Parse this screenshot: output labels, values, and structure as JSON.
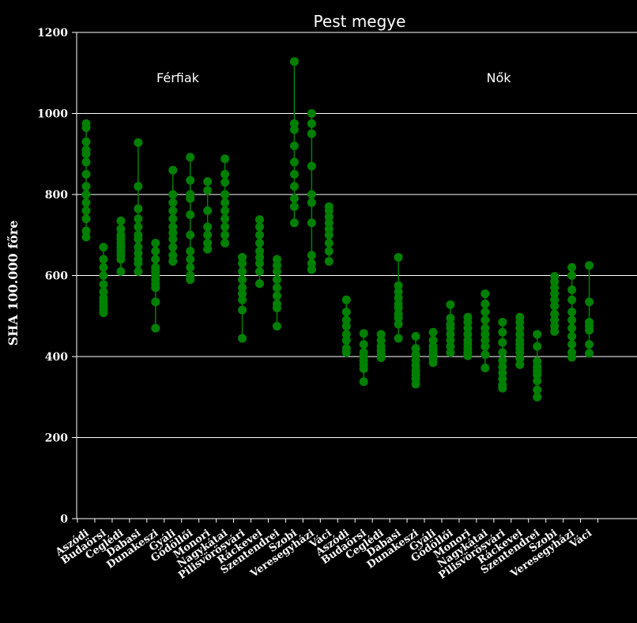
{
  "chart_data": {
    "type": "scatter",
    "title": "Pest megye",
    "ylabel": "SHA 100.000 főre",
    "xlabel": "",
    "ylim": [
      0,
      1200
    ],
    "yticks": [
      0,
      200,
      400,
      600,
      800,
      1000,
      1200
    ],
    "grid": true,
    "colors": {
      "background": "#000000",
      "marker": "#008000",
      "grid": "#ffffff",
      "text": "#ffffff"
    },
    "groups": [
      {
        "name": "Férfiak",
        "categories": [
          {
            "name": "Aszódi",
            "values": [
              695,
              710,
              740,
              760,
              780,
              800,
              820,
              850,
              880,
              900,
              910,
              930,
              965,
              975
            ]
          },
          {
            "name": "Budaörsi",
            "values": [
              508,
              515,
              525,
              535,
              545,
              560,
              578,
              600,
              620,
              640,
              670
            ]
          },
          {
            "name": "Ceglédi",
            "values": [
              610,
              640,
              650,
              660,
              670,
              680,
              690,
              700,
              715,
              735
            ]
          },
          {
            "name": "Dabasi",
            "values": [
              610,
              630,
              640,
              655,
              670,
              690,
              700,
              720,
              740,
              765,
              820,
              928
            ]
          },
          {
            "name": "Dunakeszi",
            "values": [
              470,
              535,
              570,
              580,
              590,
              600,
              610,
              620,
              640,
              660,
              680
            ]
          },
          {
            "name": "Gyáli",
            "values": [
              635,
              650,
              670,
              690,
              705,
              720,
              740,
              760,
              780,
              800,
              860
            ]
          },
          {
            "name": "Gödöllői",
            "values": [
              590,
              600,
              620,
              640,
              660,
              700,
              750,
              790,
              800,
              835,
              892
            ]
          },
          {
            "name": "Monori",
            "values": [
              665,
              680,
              700,
              720,
              760,
              810,
              832
            ]
          },
          {
            "name": "Nagykátai",
            "values": [
              680,
              700,
              720,
              740,
              760,
              780,
              800,
              830,
              850,
              888
            ]
          },
          {
            "name": "Pilisvörösvári",
            "values": [
              445,
              515,
              540,
              555,
              570,
              590,
              610,
              630,
              645
            ]
          },
          {
            "name": "Ráckevei",
            "values": [
              580,
              610,
              630,
              645,
              660,
              680,
              700,
              720,
              738
            ]
          },
          {
            "name": "Szentendrei",
            "values": [
              475,
              520,
              530,
              550,
              570,
              590,
              610,
              625,
              640
            ]
          },
          {
            "name": "Szobi",
            "values": [
              730,
              770,
              790,
              820,
              850,
              880,
              920,
              960,
              975,
              1128
            ]
          },
          {
            "name": "Veresegyházi",
            "values": [
              615,
              630,
              650,
              730,
              780,
              800,
              870,
              950,
              975,
              1000
            ]
          },
          {
            "name": "Váci",
            "values": [
              635,
              660,
              680,
              700,
              715,
              730,
              745,
              760,
              770
            ]
          }
        ]
      },
      {
        "name": "Nők",
        "categories": [
          {
            "name": "Aszódi",
            "values": [
              410,
              420,
              440,
              455,
              475,
              490,
              510,
              540
            ]
          },
          {
            "name": "Budaörsi",
            "values": [
              338,
              370,
              380,
              390,
              400,
              410,
              430,
              457
            ]
          },
          {
            "name": "Ceglédi",
            "values": [
              397,
              405,
              415,
              425,
              440,
              455
            ]
          },
          {
            "name": "Dabasi",
            "values": [
              445,
              480,
              495,
              505,
              520,
              530,
              545,
              560,
              575,
              645
            ]
          },
          {
            "name": "Dunakeszi",
            "values": [
              332,
              345,
              355,
              365,
              378,
              390,
              405,
              420,
              450
            ]
          },
          {
            "name": "Gyáli",
            "values": [
              385,
              395,
              405,
              415,
              425,
              440,
              460
            ]
          },
          {
            "name": "Gödöllői",
            "values": [
              410,
              425,
              440,
              455,
              470,
              480,
              495,
              528
            ]
          },
          {
            "name": "Monori",
            "values": [
              402,
              410,
              420,
              430,
              440,
              455,
              470,
              485,
              497
            ]
          },
          {
            "name": "Nagykátai",
            "values": [
              372,
              405,
              425,
              440,
              455,
              470,
              490,
              510,
              530,
              555
            ]
          },
          {
            "name": "Pilisvörösvári",
            "values": [
              322,
              330,
              345,
              360,
              375,
              390,
              410,
              435,
              460,
              485
            ]
          },
          {
            "name": "Ráckevei",
            "values": [
              380,
              395,
              410,
              420,
              430,
              440,
              455,
              470,
              485,
              497
            ]
          },
          {
            "name": "Szentendrei",
            "values": [
              300,
              318,
              340,
              355,
              365,
              375,
              388,
              425,
              455
            ]
          },
          {
            "name": "Szobi",
            "values": [
              462,
              475,
              490,
              505,
              525,
              540,
              555,
              570,
              585,
              598
            ]
          },
          {
            "name": "Veresegyházi",
            "values": [
              398,
              410,
              430,
              450,
              470,
              490,
              510,
              540,
              565,
              600,
              620
            ]
          },
          {
            "name": "Váci",
            "values": [
              408,
              430,
              465,
              475,
              485,
              535,
              625
            ]
          }
        ]
      }
    ]
  }
}
